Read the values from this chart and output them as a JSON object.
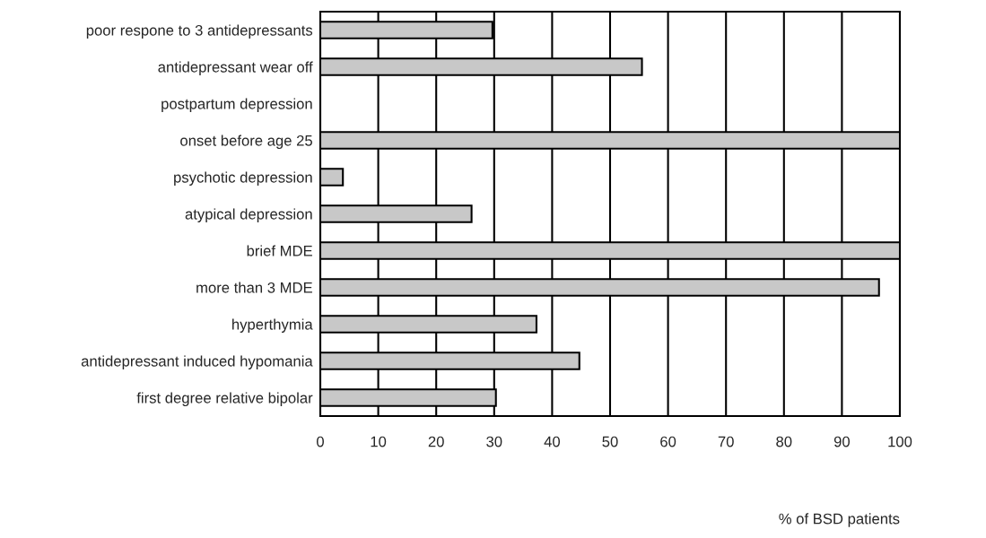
{
  "chart_data": {
    "type": "bar",
    "orientation": "horizontal",
    "categories": [
      "poor respone to 3 antidepressants",
      "antidepressant wear off",
      "postpartum depression",
      "onset before age 25",
      "psychotic depression",
      "atypical depression",
      "brief MDE",
      "more than 3 MDE",
      "hyperthymia",
      "antidepressant induced hypomania",
      "first degree relative bipolar"
    ],
    "values": [
      29.7,
      55.5,
      0,
      100,
      3.9,
      26.1,
      100,
      96.4,
      37.3,
      44.7,
      30.3
    ],
    "color": "#c8c8c8",
    "xlim": [
      0,
      100
    ],
    "xticks": [
      0,
      10,
      20,
      30,
      40,
      50,
      60,
      70,
      80,
      90,
      100
    ],
    "xlabel": "% of BSD patients",
    "grid": "x",
    "legend": false
  }
}
